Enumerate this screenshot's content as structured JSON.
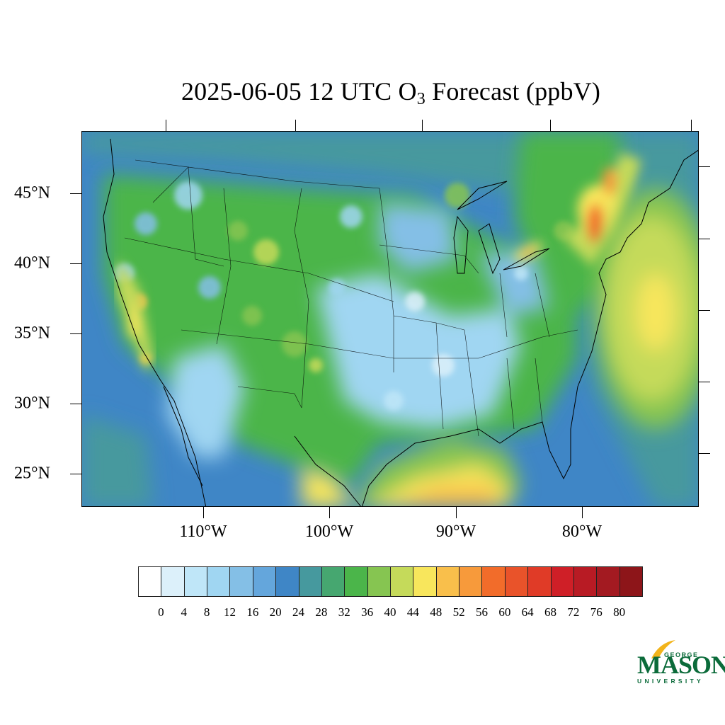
{
  "title": {
    "prefix": "2025-06-05 12 UTC O",
    "subscript": "3",
    "suffix": " Forecast (ppbV)"
  },
  "map": {
    "lat_labels": [
      "45°N",
      "40°N",
      "35°N",
      "30°N",
      "25°N"
    ],
    "lon_labels": [
      "110°W",
      "100°W",
      "90°W",
      "80°W"
    ]
  },
  "colorbar": {
    "labels": [
      "0",
      "4",
      "8",
      "12",
      "16",
      "20",
      "24",
      "28",
      "32",
      "36",
      "40",
      "44",
      "48",
      "52",
      "56",
      "60",
      "64",
      "68",
      "72",
      "76",
      "80"
    ],
    "colors": [
      "#ffffff",
      "#dcf0fa",
      "#bfe6f8",
      "#a0d6f2",
      "#84bfe6",
      "#64a6dc",
      "#3f86c6",
      "#46999e",
      "#46a770",
      "#4bb54a",
      "#86c551",
      "#c5da5a",
      "#f8e65c",
      "#f9bf4b",
      "#f79a3b",
      "#f26c2a",
      "#e9532a",
      "#e03b27",
      "#cf1f27",
      "#b81b24",
      "#a31a21",
      "#8d1519"
    ]
  },
  "logo": {
    "line1": "GEORGE",
    "line2": "MASON",
    "line3": "UNIVERSITY"
  }
}
